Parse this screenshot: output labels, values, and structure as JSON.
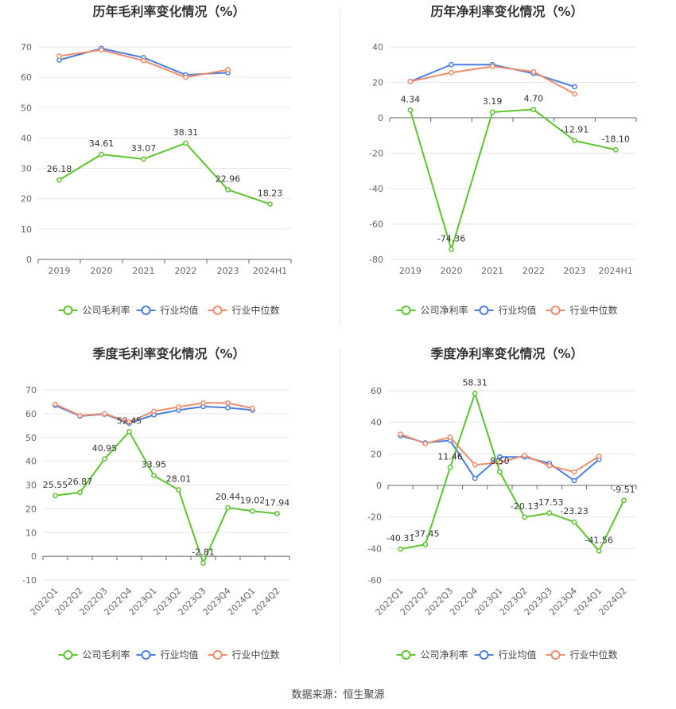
{
  "source": "数据来源：恒生聚源",
  "colors": {
    "company": "#5cc52e",
    "avg": "#4a7fe0",
    "median": "#f08c6a"
  },
  "chart_data": [
    {
      "type": "line",
      "title": "历年毛利率变化情况（%）",
      "categories": [
        "2019",
        "2020",
        "2021",
        "2022",
        "2023",
        "2024H1"
      ],
      "ylim": [
        0,
        70
      ],
      "yticks": [
        0,
        10,
        20,
        30,
        40,
        50,
        60,
        70
      ],
      "series": [
        {
          "name": "公司毛利率",
          "values": [
            26.18,
            34.61,
            33.07,
            38.31,
            22.96,
            18.23
          ],
          "labels": [
            "26.18",
            "34.61",
            "33.07",
            "38.31",
            "22.96",
            "18.23"
          ]
        },
        {
          "name": "行业均值",
          "values": [
            65.7,
            69.5,
            66.5,
            60.8,
            61.5,
            null
          ]
        },
        {
          "name": "行业中位数",
          "values": [
            67.0,
            69.0,
            65.5,
            60.0,
            62.5,
            null
          ]
        }
      ]
    },
    {
      "type": "line",
      "title": "历年净利率变化情况（%）",
      "categories": [
        "2019",
        "2020",
        "2021",
        "2022",
        "2023",
        "2024H1"
      ],
      "ylim": [
        -80,
        40
      ],
      "yticks": [
        -80,
        -60,
        -40,
        -20,
        0,
        20,
        40
      ],
      "series": [
        {
          "name": "公司净利率",
          "values": [
            4.34,
            -74.36,
            3.19,
            4.7,
            -12.91,
            -18.1
          ],
          "labels": [
            "4.34",
            "-74.36",
            "3.19",
            "4.70",
            "-12.91",
            "-18.10"
          ]
        },
        {
          "name": "行业均值",
          "values": [
            20.5,
            30.0,
            30.0,
            25.0,
            17.5,
            null
          ]
        },
        {
          "name": "行业中位数",
          "values": [
            20.5,
            25.5,
            29.0,
            26.0,
            13.5,
            null
          ]
        }
      ]
    },
    {
      "type": "line",
      "title": "季度毛利率变化情况（%）",
      "categories": [
        "2022Q1",
        "2022Q2",
        "2022Q3",
        "2022Q4",
        "2023Q1",
        "2023Q2",
        "2023Q3",
        "2023Q4",
        "2024Q1",
        "2024Q2"
      ],
      "ylim": [
        -10,
        70
      ],
      "yticks": [
        -10,
        0,
        10,
        20,
        30,
        40,
        50,
        60,
        70
      ],
      "series": [
        {
          "name": "公司毛利率",
          "values": [
            25.55,
            26.87,
            40.95,
            52.45,
            33.95,
            28.01,
            -2.81,
            20.44,
            19.02,
            17.94
          ],
          "labels": [
            "25.55",
            "26.87",
            "40.95",
            "52.45",
            "33.95",
            "28.01",
            "-2.81",
            "20.44",
            "19.02",
            "17.94"
          ]
        },
        {
          "name": "行业均值",
          "values": [
            63.5,
            59.0,
            59.8,
            56.0,
            59.5,
            61.5,
            63.0,
            62.5,
            61.5,
            null
          ]
        },
        {
          "name": "行业中位数",
          "values": [
            64.0,
            59.2,
            60.0,
            56.5,
            61.0,
            62.8,
            64.5,
            64.5,
            62.3,
            null
          ]
        }
      ]
    },
    {
      "type": "line",
      "title": "季度净利率变化情况（%）",
      "categories": [
        "2022Q1",
        "2022Q2",
        "2022Q3",
        "2022Q4",
        "2023Q1",
        "2023Q2",
        "2023Q3",
        "2023Q4",
        "2024Q1",
        "2024Q2"
      ],
      "ylim": [
        -60,
        60
      ],
      "yticks": [
        -60,
        -40,
        -20,
        0,
        20,
        40,
        60
      ],
      "series": [
        {
          "name": "公司净利率",
          "values": [
            -40.31,
            -37.45,
            11.46,
            58.31,
            8.5,
            -20.13,
            -17.53,
            -23.23,
            -41.56,
            -9.51
          ],
          "labels": [
            "-40.31",
            "-37.45",
            "11.46",
            "58.31",
            "8.50",
            "-20.13",
            "-17.53",
            "-23.23",
            "-41.56",
            "-9.51"
          ]
        },
        {
          "name": "行业均值",
          "values": [
            31.5,
            27.0,
            28.5,
            4.5,
            18.0,
            18.0,
            14.0,
            3.0,
            16.5,
            null
          ]
        },
        {
          "name": "行业中位数",
          "values": [
            32.5,
            26.5,
            30.5,
            13.0,
            14.5,
            19.0,
            12.5,
            8.5,
            18.5,
            null
          ]
        }
      ]
    }
  ]
}
